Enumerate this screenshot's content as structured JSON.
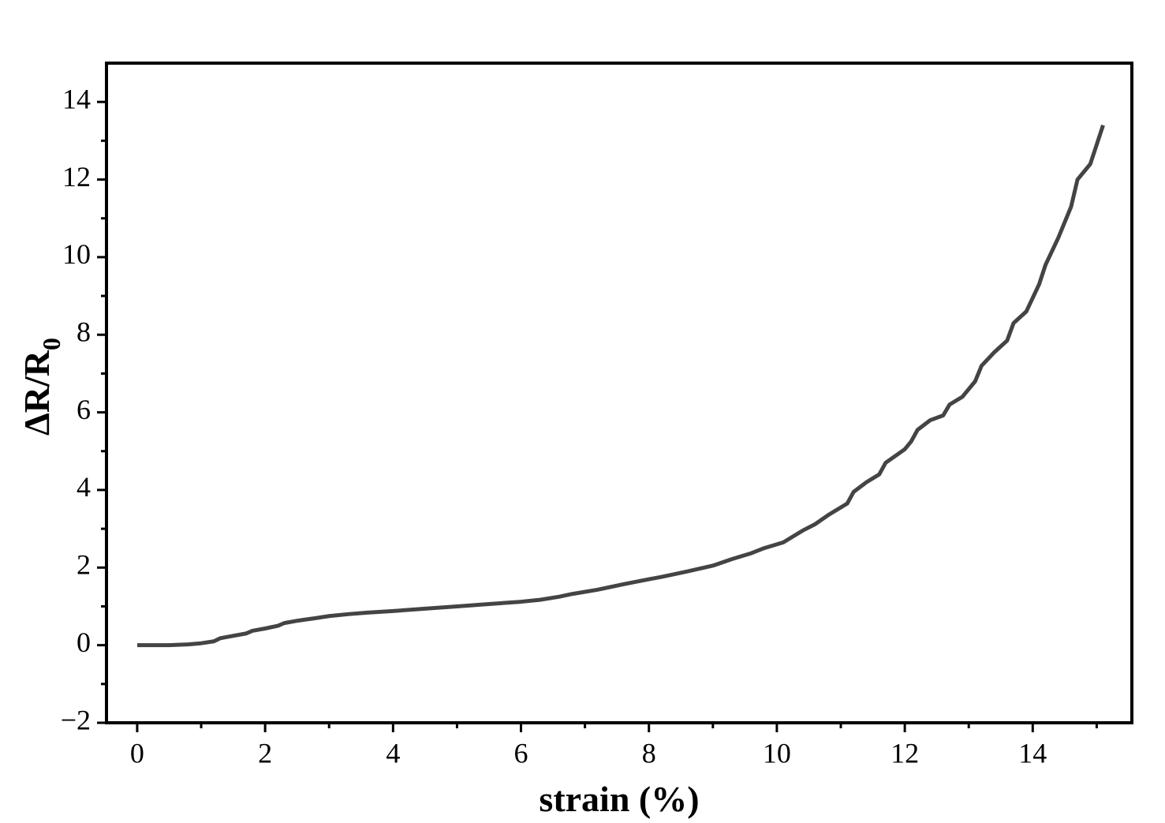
{
  "chart_data": {
    "type": "line",
    "x_label": "strain (%)",
    "y_label": "ΔR/R",
    "y_label_subscript": "0",
    "x": [
      0,
      0.5,
      0.8,
      1.0,
      1.2,
      1.3,
      1.5,
      1.7,
      1.8,
      2,
      2.2,
      2.3,
      2.5,
      2.8,
      3,
      3.3,
      3.6,
      4,
      4.5,
      5,
      5.5,
      6,
      6.3,
      6.6,
      6.8,
      7.2,
      7.6,
      8,
      8.2,
      8.6,
      9,
      9.3,
      9.6,
      9.8,
      10.1,
      10.4,
      10.6,
      10.8,
      11.1,
      11.2,
      11.4,
      11.6,
      11.7,
      12,
      12.1,
      12.2,
      12.4,
      12.6,
      12.7,
      12.9,
      13.1,
      13.2,
      13.4,
      13.6,
      13.7,
      13.9,
      14.1,
      14.2,
      14.4,
      14.6,
      14.7,
      14.9,
      15.1
    ],
    "series": [
      {
        "color": "#444444",
        "values": [
          0,
          0,
          0.02,
          0.05,
          0.1,
          0.18,
          0.24,
          0.3,
          0.37,
          0.43,
          0.5,
          0.57,
          0.63,
          0.7,
          0.75,
          0.8,
          0.84,
          0.88,
          0.94,
          1.0,
          1.06,
          1.12,
          1.17,
          1.25,
          1.32,
          1.43,
          1.57,
          1.7,
          1.76,
          1.9,
          2.05,
          2.22,
          2.37,
          2.5,
          2.65,
          2.95,
          3.12,
          3.35,
          3.65,
          3.95,
          4.2,
          4.4,
          4.7,
          5.05,
          5.25,
          5.55,
          5.8,
          5.92,
          6.2,
          6.4,
          6.8,
          7.2,
          7.55,
          7.85,
          8.3,
          8.6,
          9.3,
          9.8,
          10.5,
          11.3,
          12.0,
          12.4,
          13.4
        ]
      }
    ],
    "xlim": [
      -0.48,
      15.55
    ],
    "ylim": [
      -2,
      15
    ],
    "xticks": [
      0,
      2,
      4,
      6,
      8,
      10,
      12,
      14
    ],
    "yticks": [
      {
        "value": -2,
        "label": "−2"
      },
      0,
      2,
      4,
      6,
      8,
      10,
      12,
      14
    ],
    "xticks_minor": [
      1,
      3,
      5,
      7,
      9,
      11,
      13,
      15
    ],
    "yticks_minor": [
      -1,
      1,
      3,
      5,
      7,
      9,
      11,
      13
    ],
    "grid": false
  }
}
